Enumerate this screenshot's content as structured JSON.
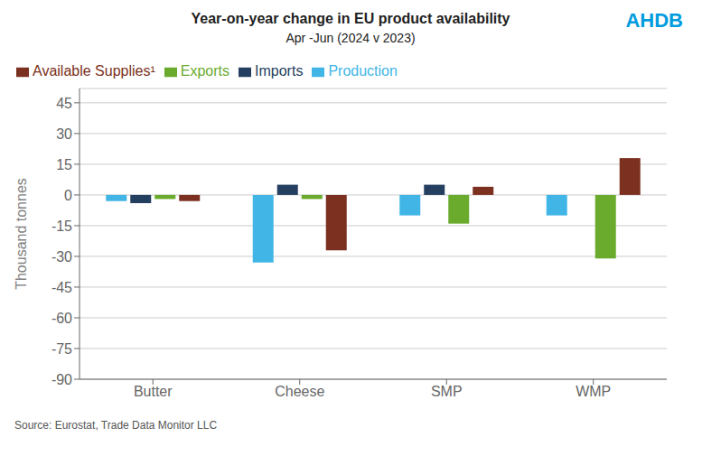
{
  "chart_data": {
    "type": "bar",
    "title": "Year-on-year change in EU product availability",
    "subtitle": "Apr -Jun (2024 v 2023)",
    "categories": [
      "Butter",
      "Cheese",
      "SMP",
      "WMP"
    ],
    "series": [
      {
        "name": "Production",
        "color": "#41B6E6",
        "values": [
          -3,
          -33,
          -10,
          -10
        ]
      },
      {
        "name": "Imports",
        "color": "#243F60",
        "values": [
          -4,
          5,
          5,
          0
        ]
      },
      {
        "name": "Exports",
        "color": "#6AAB2E",
        "values": [
          -2,
          -2,
          -14,
          -31
        ]
      },
      {
        "name": "Available Supplies¹",
        "color": "#7B3020",
        "values": [
          -3,
          -27,
          4,
          18
        ]
      }
    ],
    "ylabel": "Thousand tonnes",
    "ylim": [
      -90,
      52
    ],
    "yticks": [
      45,
      30,
      15,
      0,
      -15,
      -30,
      -45,
      -60,
      -75,
      -90
    ],
    "grid": true,
    "legend": "upper left",
    "annotations": [
      {
        "text": "AHDB",
        "color": "#009CDE"
      },
      {
        "text": "Source: Eurostat, Trade Data Monitor LLC"
      }
    ]
  }
}
